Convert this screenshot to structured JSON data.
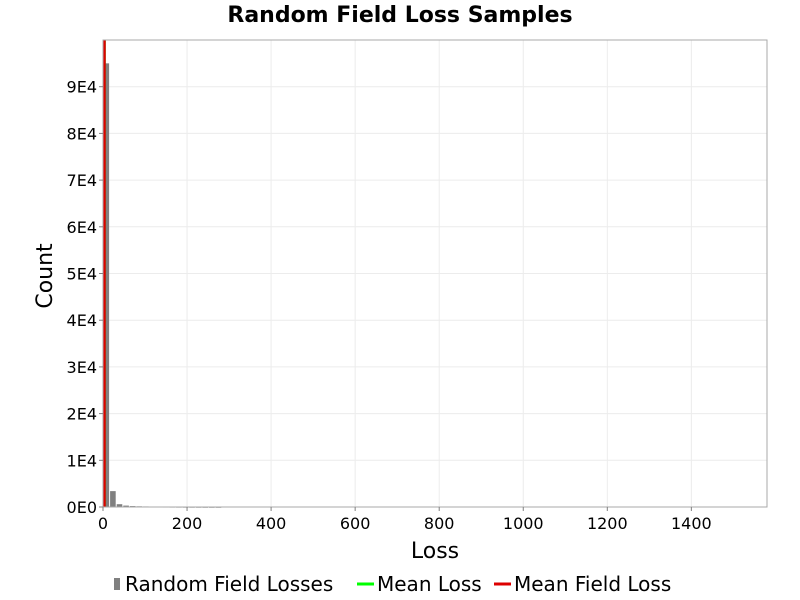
{
  "chart_data": {
    "type": "bar",
    "title": "Random Field Loss Samples",
    "xlabel": "Loss",
    "ylabel": "Count",
    "xlim": [
      0,
      1580
    ],
    "ylim": [
      0,
      100000
    ],
    "x_ticks": [
      0,
      200,
      400,
      600,
      800,
      1000,
      1200,
      1400
    ],
    "x_tick_labels": [
      "0",
      "200",
      "400",
      "600",
      "800",
      "1000",
      "1200",
      "1400"
    ],
    "y_ticks": [
      0,
      10000,
      20000,
      30000,
      40000,
      50000,
      60000,
      70000,
      80000,
      90000
    ],
    "y_tick_labels": [
      "0E0",
      "1E4",
      "2E4",
      "3E4",
      "4E4",
      "5E4",
      "6E4",
      "7E4",
      "8E4",
      "9E4"
    ],
    "grid": true,
    "legend_position": "bottom",
    "bin_width": 15.7,
    "series": [
      {
        "name": "Random Field Losses",
        "kind": "histogram",
        "color": "#808080",
        "bins": [
          {
            "x0": 0,
            "x1": 15.7,
            "count": 95000
          },
          {
            "x0": 15.7,
            "x1": 31.4,
            "count": 3400
          },
          {
            "x0": 31.4,
            "x1": 47.1,
            "count": 600
          },
          {
            "x0": 47.1,
            "x1": 62.8,
            "count": 300
          },
          {
            "x0": 62.8,
            "x1": 78.5,
            "count": 200
          },
          {
            "x0": 78.5,
            "x1": 94.2,
            "count": 150
          },
          {
            "x0": 94.2,
            "x1": 109.9,
            "count": 120
          },
          {
            "x0": 109.9,
            "x1": 125.6,
            "count": 100
          },
          {
            "x0": 125.6,
            "x1": 141.3,
            "count": 80
          },
          {
            "x0": 141.3,
            "x1": 157.0,
            "count": 60
          },
          {
            "x0": 157.0,
            "x1": 172.7,
            "count": 50
          },
          {
            "x0": 172.7,
            "x1": 188.4,
            "count": 40
          },
          {
            "x0": 188.4,
            "x1": 204.1,
            "count": 30
          },
          {
            "x0": 204.1,
            "x1": 219.8,
            "count": 25
          },
          {
            "x0": 219.8,
            "x1": 235.5,
            "count": 20
          },
          {
            "x0": 235.5,
            "x1": 251.2,
            "count": 15
          },
          {
            "x0": 251.2,
            "x1": 266.9,
            "count": 12
          },
          {
            "x0": 266.9,
            "x1": 282.6,
            "count": 10
          }
        ]
      },
      {
        "name": "Mean Loss",
        "kind": "vline",
        "color": "#00ff00",
        "x": 3
      },
      {
        "name": "Mean Field Loss",
        "kind": "vline",
        "color": "#dd0000",
        "x": 3
      }
    ]
  }
}
